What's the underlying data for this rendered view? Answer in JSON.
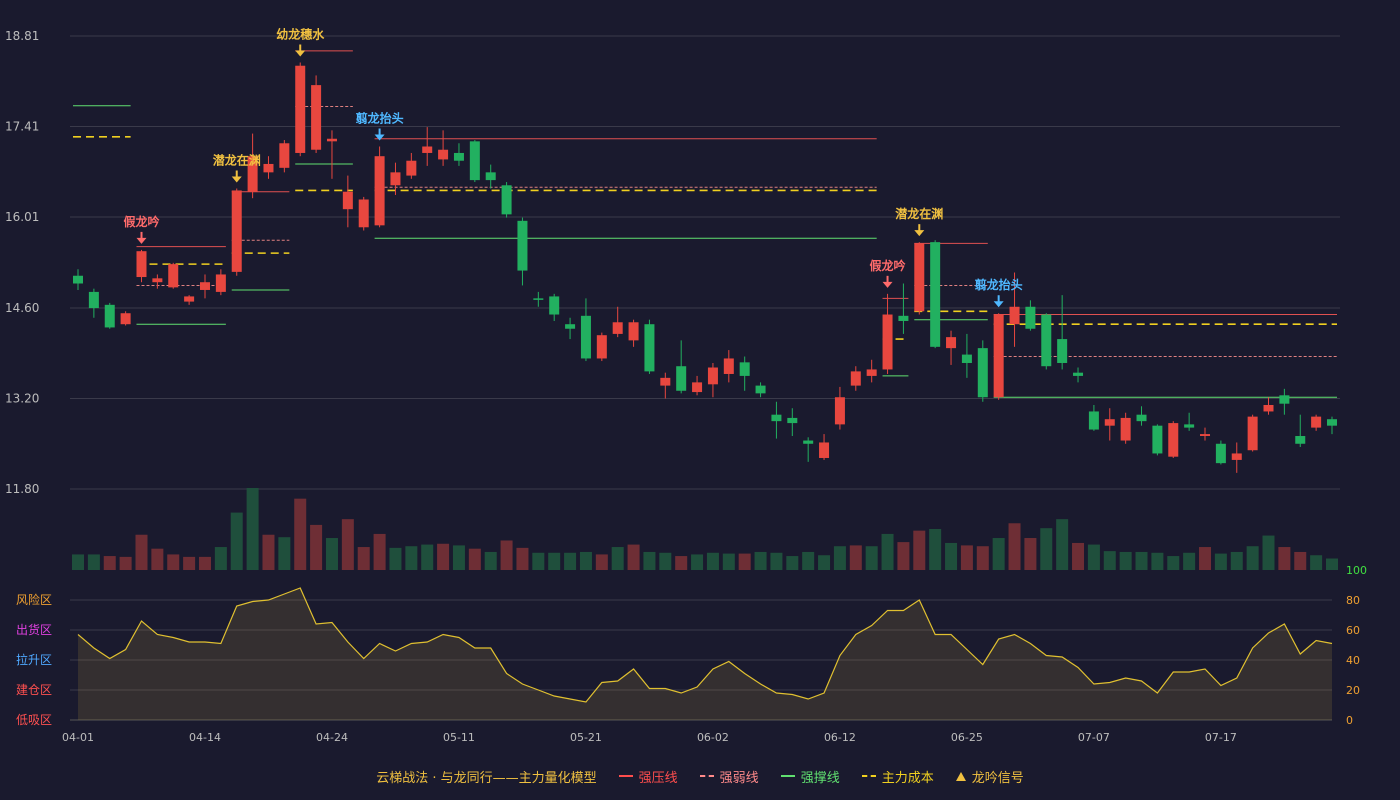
{
  "colors": {
    "background": "#1a1a2e",
    "grid": "#3a3a4a",
    "up": "#e8473f",
    "down": "#22b060",
    "resist": "#e05050",
    "weak": "#e08080",
    "support": "#60e070",
    "cost": "#f0d020",
    "signal_gold": "#f0c040",
    "signal_red": "#ff6b6b",
    "signal_blue": "#4fb8ff",
    "osc_line": "#e0c030",
    "axis_text": "#bdbdbd"
  },
  "legend": {
    "title": "云梯战法 · 与龙同行——主力量化模型",
    "items": [
      {
        "label": "强压线",
        "color": "#ff4d4d",
        "style": "solid"
      },
      {
        "label": "强弱线",
        "color": "#ff8a8a",
        "style": "dash"
      },
      {
        "label": "强撑线",
        "color": "#60e070",
        "style": "solid"
      },
      {
        "label": "主力成本",
        "color": "#f0d020",
        "style": "dash"
      },
      {
        "label": "龙吟信号",
        "color": "#f0c040",
        "style": "triangle"
      }
    ]
  },
  "osc_zones": [
    {
      "label": "风险区",
      "color": "#f0a030",
      "value": 80
    },
    {
      "label": "出货区",
      "color": "#e040e0",
      "value": 60
    },
    {
      "label": "拉升区",
      "color": "#4fa8ff",
      "value": 40
    },
    {
      "label": "建仓区",
      "color": "#ff5050",
      "value": 20
    },
    {
      "label": "低吸区",
      "color": "#ff5050",
      "value": 0
    }
  ],
  "chart_data": {
    "type": "candlestick",
    "price_ticks": [
      "18.81",
      "17.41",
      "16.01",
      "14.60",
      "13.20",
      "11.80"
    ],
    "price_range": [
      11.8,
      18.81
    ],
    "osc_ticks": [
      "100",
      "80",
      "60",
      "40",
      "20",
      "0"
    ],
    "osc_range": [
      0,
      100
    ],
    "x_ticks": [
      {
        "i": 0,
        "label": "04-01"
      },
      {
        "i": 8,
        "label": "04-14"
      },
      {
        "i": 16,
        "label": "04-24"
      },
      {
        "i": 24,
        "label": "05-11"
      },
      {
        "i": 32,
        "label": "05-21"
      },
      {
        "i": 40,
        "label": "06-02"
      },
      {
        "i": 48,
        "label": "06-12"
      },
      {
        "i": 56,
        "label": "06-25"
      },
      {
        "i": 64,
        "label": "07-07"
      },
      {
        "i": 72,
        "label": "07-17"
      }
    ],
    "candles": [
      [
        15.1,
        14.98,
        15.2,
        14.88
      ],
      [
        14.85,
        14.6,
        14.9,
        14.45
      ],
      [
        14.65,
        14.3,
        14.68,
        14.28
      ],
      [
        14.35,
        14.52,
        14.55,
        14.33
      ],
      [
        15.08,
        15.48,
        15.5,
        15.0
      ],
      [
        15.0,
        15.06,
        15.12,
        14.9
      ],
      [
        14.92,
        15.28,
        15.3,
        14.9
      ],
      [
        14.7,
        14.78,
        14.8,
        14.65
      ],
      [
        14.88,
        15.0,
        15.12,
        14.75
      ],
      [
        14.85,
        15.12,
        15.2,
        14.8
      ],
      [
        15.16,
        16.42,
        16.45,
        15.1
      ],
      [
        16.4,
        16.95,
        17.3,
        16.3
      ],
      [
        16.7,
        16.83,
        16.95,
        16.6
      ],
      [
        16.77,
        17.15,
        17.2,
        16.7
      ],
      [
        17.0,
        18.35,
        18.4,
        16.95
      ],
      [
        17.05,
        18.05,
        18.2,
        17.0
      ],
      [
        17.18,
        17.22,
        17.35,
        16.6
      ],
      [
        16.13,
        16.4,
        16.65,
        15.85
      ],
      [
        15.85,
        16.28,
        16.32,
        15.8
      ],
      [
        15.88,
        16.95,
        17.1,
        15.85
      ],
      [
        16.5,
        16.7,
        16.85,
        16.35
      ],
      [
        16.65,
        16.88,
        17.0,
        16.6
      ],
      [
        17.0,
        17.1,
        17.4,
        16.8
      ],
      [
        16.9,
        17.05,
        17.35,
        16.8
      ],
      [
        17.0,
        16.88,
        17.15,
        16.8
      ],
      [
        17.18,
        16.58,
        17.2,
        16.55
      ],
      [
        16.7,
        16.58,
        16.82,
        16.45
      ],
      [
        16.5,
        16.05,
        16.55,
        16.0
      ],
      [
        15.95,
        15.18,
        16.0,
        14.95
      ],
      [
        14.75,
        14.74,
        14.85,
        14.62
      ],
      [
        14.78,
        14.5,
        14.82,
        14.4
      ],
      [
        14.35,
        14.28,
        14.45,
        14.12
      ],
      [
        14.48,
        13.82,
        14.75,
        13.78
      ],
      [
        13.82,
        14.18,
        14.22,
        13.78
      ],
      [
        14.2,
        14.38,
        14.62,
        14.15
      ],
      [
        14.1,
        14.38,
        14.42,
        14.0
      ],
      [
        14.35,
        13.62,
        14.42,
        13.58
      ],
      [
        13.4,
        13.52,
        13.6,
        13.2
      ],
      [
        13.7,
        13.32,
        14.1,
        13.28
      ],
      [
        13.3,
        13.45,
        13.55,
        13.25
      ],
      [
        13.42,
        13.68,
        13.75,
        13.22
      ],
      [
        13.58,
        13.82,
        13.95,
        13.45
      ],
      [
        13.76,
        13.55,
        13.85,
        13.32
      ],
      [
        13.4,
        13.28,
        13.45,
        13.22
      ],
      [
        12.95,
        12.85,
        13.15,
        12.58
      ],
      [
        12.9,
        12.82,
        13.05,
        12.62
      ],
      [
        12.55,
        12.5,
        12.6,
        12.22
      ],
      [
        12.28,
        12.52,
        12.65,
        12.25
      ],
      [
        12.8,
        13.22,
        13.38,
        12.72
      ],
      [
        13.4,
        13.62,
        13.7,
        13.32
      ],
      [
        13.55,
        13.65,
        13.8,
        13.45
      ],
      [
        13.65,
        14.5,
        14.82,
        13.58
      ],
      [
        14.48,
        14.4,
        14.98,
        14.2
      ],
      [
        14.55,
        15.6,
        15.62,
        14.5
      ],
      [
        15.62,
        14.0,
        15.65,
        13.98
      ],
      [
        13.98,
        14.15,
        14.25,
        13.72
      ],
      [
        13.88,
        13.75,
        14.2,
        13.52
      ],
      [
        13.98,
        13.22,
        14.1,
        13.15
      ],
      [
        13.22,
        14.5,
        14.52,
        13.18
      ],
      [
        14.35,
        14.62,
        15.15,
        14.0
      ],
      [
        14.62,
        14.28,
        14.72,
        14.25
      ],
      [
        14.5,
        13.7,
        14.52,
        13.65
      ],
      [
        14.12,
        13.75,
        14.8,
        13.65
      ],
      [
        13.6,
        13.55,
        13.68,
        13.45
      ],
      [
        13.0,
        12.72,
        13.1,
        12.7
      ],
      [
        12.78,
        12.88,
        13.05,
        12.55
      ],
      [
        12.55,
        12.9,
        12.98,
        12.5
      ],
      [
        12.95,
        12.85,
        13.08,
        12.78
      ],
      [
        12.78,
        12.35,
        12.8,
        12.32
      ],
      [
        12.3,
        12.82,
        12.85,
        12.28
      ],
      [
        12.8,
        12.75,
        12.98,
        12.7
      ],
      [
        12.62,
        12.65,
        12.75,
        12.55
      ],
      [
        12.5,
        12.2,
        12.55,
        12.18
      ],
      [
        12.25,
        12.35,
        12.52,
        12.05
      ],
      [
        12.4,
        12.92,
        12.95,
        12.38
      ],
      [
        13.0,
        13.1,
        13.22,
        12.95
      ],
      [
        13.25,
        13.12,
        13.35,
        12.95
      ],
      [
        12.62,
        12.5,
        12.95,
        12.45
      ],
      [
        12.75,
        12.92,
        12.95,
        12.7
      ],
      [
        12.88,
        12.78,
        12.92,
        12.65
      ]
    ],
    "volume_up": [
      false,
      false,
      true,
      true,
      true,
      true,
      true,
      true,
      true,
      false,
      false,
      false,
      true,
      false,
      true,
      true,
      false,
      true,
      true,
      true,
      false,
      false,
      false,
      true,
      false,
      true,
      false,
      true,
      true,
      false,
      false,
      false,
      false,
      true,
      false,
      true,
      false,
      false,
      true,
      false,
      false,
      false,
      true,
      false,
      false,
      false,
      false,
      false,
      false,
      true,
      false,
      false,
      true,
      true,
      false,
      false,
      true,
      true,
      false,
      true,
      true,
      false,
      false,
      true,
      false,
      false,
      false,
      false,
      false,
      false,
      false,
      true,
      false,
      false,
      false,
      false,
      true,
      true,
      false,
      false
    ],
    "volume": [
      0.19,
      0.19,
      0.17,
      0.16,
      0.43,
      0.26,
      0.19,
      0.16,
      0.16,
      0.28,
      0.7,
      1.0,
      0.43,
      0.4,
      0.87,
      0.55,
      0.39,
      0.62,
      0.28,
      0.44,
      0.27,
      0.29,
      0.31,
      0.32,
      0.3,
      0.26,
      0.22,
      0.36,
      0.27,
      0.21,
      0.21,
      0.21,
      0.22,
      0.19,
      0.28,
      0.31,
      0.22,
      0.21,
      0.17,
      0.19,
      0.21,
      0.2,
      0.2,
      0.22,
      0.21,
      0.17,
      0.22,
      0.18,
      0.29,
      0.3,
      0.29,
      0.44,
      0.34,
      0.48,
      0.5,
      0.33,
      0.3,
      0.29,
      0.39,
      0.57,
      0.39,
      0.51,
      0.62,
      0.33,
      0.31,
      0.23,
      0.22,
      0.22,
      0.21,
      0.17,
      0.21,
      0.28,
      0.2,
      0.22,
      0.29,
      0.42,
      0.28,
      0.22,
      0.18,
      0.14
    ],
    "osc": [
      57,
      48,
      41,
      47,
      66,
      57,
      55,
      52,
      52,
      51,
      76,
      79,
      80,
      84,
      88,
      64,
      65,
      52,
      41,
      51,
      46,
      51,
      52,
      57,
      55,
      48,
      48,
      31,
      24,
      20,
      16,
      14,
      12,
      25,
      26,
      34,
      21,
      21,
      18,
      22,
      34,
      39,
      31,
      24,
      18,
      17,
      14,
      18,
      43,
      57,
      63,
      73,
      73,
      80,
      57,
      57,
      47,
      37,
      54,
      57,
      51,
      43,
      42,
      35,
      24,
      25,
      28,
      26,
      18,
      32,
      32,
      34,
      23,
      28,
      48,
      58,
      64,
      44,
      53,
      51
    ],
    "levels": [
      {
        "kind": "support",
        "from": 0,
        "to": 3,
        "v": 17.73
      },
      {
        "kind": "cost",
        "from": 0,
        "to": 3,
        "v": 17.25
      },
      {
        "kind": "support",
        "from": 4,
        "to": 9,
        "v": 14.35
      },
      {
        "kind": "resist",
        "from": 4,
        "to": 9,
        "v": 15.55
      },
      {
        "kind": "weak",
        "from": 4,
        "to": 9,
        "v": 14.95
      },
      {
        "kind": "cost",
        "from": 4,
        "to": 9,
        "v": 15.28
      },
      {
        "kind": "resist",
        "from": 10,
        "to": 13,
        "v": 16.4
      },
      {
        "kind": "weak",
        "from": 10,
        "to": 13,
        "v": 15.65
      },
      {
        "kind": "cost",
        "from": 10,
        "to": 13,
        "v": 15.45
      },
      {
        "kind": "support",
        "from": 10,
        "to": 13,
        "v": 14.88
      },
      {
        "kind": "resist",
        "from": 14,
        "to": 17,
        "v": 18.58
      },
      {
        "kind": "weak",
        "from": 14,
        "to": 17,
        "v": 17.72
      },
      {
        "kind": "support",
        "from": 14,
        "to": 17,
        "v": 16.83
      },
      {
        "kind": "cost",
        "from": 14,
        "to": 17,
        "v": 16.42
      },
      {
        "kind": "resist",
        "from": 19,
        "to": 50,
        "v": 17.22
      },
      {
        "kind": "weak",
        "from": 19,
        "to": 50,
        "v": 16.47
      },
      {
        "kind": "cost",
        "from": 19,
        "to": 50,
        "v": 16.42
      },
      {
        "kind": "support",
        "from": 19,
        "to": 50,
        "v": 15.68
      },
      {
        "kind": "resist",
        "from": 51,
        "to": 52,
        "v": 14.75
      },
      {
        "kind": "cost",
        "from": 51,
        "to": 52,
        "v": 14.12
      },
      {
        "kind": "support",
        "from": 51,
        "to": 52,
        "v": 13.55
      },
      {
        "kind": "resist",
        "from": 53,
        "to": 57,
        "v": 15.6
      },
      {
        "kind": "weak",
        "from": 53,
        "to": 57,
        "v": 14.95
      },
      {
        "kind": "cost",
        "from": 53,
        "to": 57,
        "v": 14.55
      },
      {
        "kind": "support",
        "from": 53,
        "to": 57,
        "v": 14.42
      },
      {
        "kind": "resist",
        "from": 58,
        "to": 79,
        "v": 14.5
      },
      {
        "kind": "cost",
        "from": 58,
        "to": 79,
        "v": 14.35
      },
      {
        "kind": "weak",
        "from": 58,
        "to": 79,
        "v": 13.85
      },
      {
        "kind": "support",
        "from": 58,
        "to": 79,
        "v": 13.22
      }
    ],
    "signals": [
      {
        "i": 4,
        "label": "假龙吟",
        "color": "red"
      },
      {
        "i": 10,
        "label": "潜龙在渊",
        "color": "gold"
      },
      {
        "i": 14,
        "label": "幼龙穗水",
        "color": "gold"
      },
      {
        "i": 19,
        "label": "翦龙抬头",
        "color": "blue"
      },
      {
        "i": 51,
        "label": "假龙吟",
        "color": "red"
      },
      {
        "i": 53,
        "label": "潜龙在渊",
        "color": "gold"
      },
      {
        "i": 58,
        "label": "翦龙抬头",
        "color": "blue"
      }
    ]
  }
}
